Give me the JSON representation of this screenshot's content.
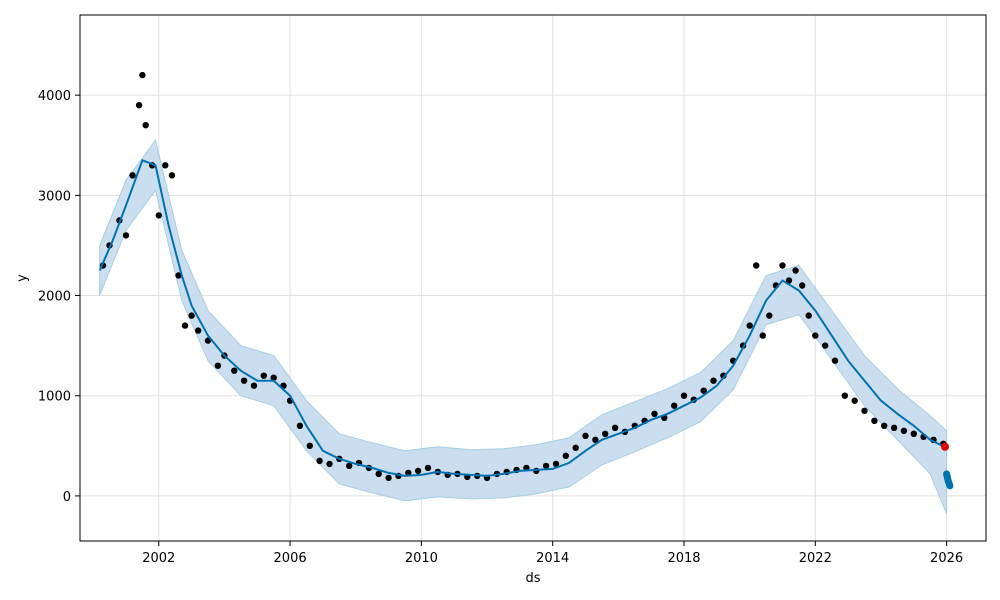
{
  "chart_data": {
    "type": "scatter",
    "title": "",
    "xlabel": "ds",
    "ylabel": "y",
    "xlim": [
      1999.6,
      2027.2
    ],
    "ylim": [
      -450,
      4800
    ],
    "x_ticks": [
      2002,
      2006,
      2010,
      2014,
      2018,
      2022,
      2026
    ],
    "x_tick_labels": [
      "2002",
      "2006",
      "2010",
      "2014",
      "2018",
      "2022",
      "2026"
    ],
    "y_ticks": [
      0,
      1000,
      2000,
      3000,
      4000
    ],
    "y_tick_labels": [
      "0",
      "1000",
      "2000",
      "3000",
      "4000"
    ],
    "grid": true,
    "colors": {
      "observed": "#000000",
      "forecast": "#0072b2",
      "interval": "#c6dbef",
      "interval_edge": "#9ecae1",
      "last_point": "#e00000"
    },
    "series": [
      {
        "kind": "observed_points",
        "x": [
          2000.3,
          2000.5,
          2000.8,
          2001.0,
          2001.2,
          2001.4,
          2001.5,
          2001.6,
          2001.8,
          2002.0,
          2002.2,
          2002.4,
          2002.6,
          2002.8,
          2003.0,
          2003.2,
          2003.5,
          2003.8,
          2004.0,
          2004.3,
          2004.6,
          2004.9,
          2005.2,
          2005.5,
          2005.8,
          2006.0,
          2006.3,
          2006.6,
          2006.9,
          2007.2,
          2007.5,
          2007.8,
          2008.1,
          2008.4,
          2008.7,
          2009.0,
          2009.3,
          2009.6,
          2009.9,
          2010.2,
          2010.5,
          2010.8,
          2011.1,
          2011.4,
          2011.7,
          2012.0,
          2012.3,
          2012.6,
          2012.9,
          2013.2,
          2013.5,
          2013.8,
          2014.1,
          2014.4,
          2014.7,
          2015.0,
          2015.3,
          2015.6,
          2015.9,
          2016.2,
          2016.5,
          2016.8,
          2017.1,
          2017.4,
          2017.7,
          2018.0,
          2018.3,
          2018.6,
          2018.9,
          2019.2,
          2019.5,
          2019.8,
          2020.0,
          2020.2,
          2020.4,
          2020.6,
          2020.8,
          2021.0,
          2021.2,
          2021.4,
          2021.6,
          2021.8,
          2022.0,
          2022.3,
          2022.6,
          2022.9,
          2023.2,
          2023.5,
          2023.8,
          2024.1,
          2024.4,
          2024.7,
          2025.0,
          2025.3,
          2025.6,
          2025.9
        ],
        "y": [
          2300,
          2500,
          2750,
          2600,
          3200,
          3900,
          4200,
          3700,
          3300,
          2800,
          3300,
          3200,
          2200,
          1700,
          1800,
          1650,
          1550,
          1300,
          1400,
          1250,
          1150,
          1100,
          1200,
          1180,
          1100,
          950,
          700,
          500,
          350,
          320,
          370,
          300,
          330,
          280,
          220,
          180,
          200,
          230,
          250,
          280,
          240,
          210,
          220,
          190,
          200,
          180,
          220,
          240,
          260,
          280,
          250,
          300,
          320,
          400,
          480,
          600,
          560,
          620,
          680,
          640,
          700,
          750,
          820,
          780,
          900,
          1000,
          960,
          1050,
          1150,
          1200,
          1350,
          1500,
          1700,
          2300,
          1600,
          1800,
          2100,
          2300,
          2150,
          2250,
          2100,
          1800,
          1600,
          1500,
          1350,
          1000,
          950,
          850,
          750,
          700,
          680,
          650,
          620,
          590,
          560,
          520
        ]
      },
      {
        "kind": "forecast",
        "name": "",
        "x": [
          2000.2,
          2000.6,
          2001.0,
          2001.5,
          2001.9,
          2002.3,
          2002.7,
          2003.0,
          2003.5,
          2004.0,
          2004.5,
          2005.0,
          2005.5,
          2006.0,
          2006.5,
          2007.0,
          2007.5,
          2008.0,
          2008.5,
          2009.0,
          2009.5,
          2010.0,
          2010.5,
          2011.0,
          2011.5,
          2012.0,
          2012.5,
          2013.0,
          2013.5,
          2014.0,
          2014.5,
          2015.0,
          2015.5,
          2016.0,
          2016.5,
          2017.0,
          2017.5,
          2018.0,
          2018.5,
          2019.0,
          2019.5,
          2020.0,
          2020.5,
          2021.0,
          2021.5,
          2022.0,
          2022.5,
          2023.0,
          2023.5,
          2024.0,
          2024.5,
          2025.0,
          2025.5,
          2026.0
        ],
        "y": [
          2250,
          2550,
          2900,
          3350,
          3300,
          2700,
          2200,
          1900,
          1600,
          1400,
          1250,
          1150,
          1150,
          1000,
          700,
          450,
          370,
          320,
          280,
          230,
          200,
          210,
          240,
          220,
          210,
          200,
          220,
          250,
          260,
          270,
          330,
          450,
          560,
          620,
          680,
          760,
          820,
          900,
          980,
          1100,
          1300,
          1600,
          1950,
          2150,
          2050,
          1850,
          1600,
          1350,
          1150,
          950,
          820,
          700,
          560,
          480
        ]
      },
      {
        "kind": "uncertainty_interval",
        "x": [
          2000.2,
          2001.0,
          2001.9,
          2002.7,
          2003.5,
          2004.5,
          2005.5,
          2006.5,
          2007.5,
          2008.5,
          2009.5,
          2010.5,
          2011.5,
          2012.5,
          2013.5,
          2014.5,
          2015.5,
          2016.5,
          2017.5,
          2018.5,
          2019.5,
          2020.5,
          2021.5,
          2022.5,
          2023.5,
          2024.5,
          2025.5,
          2026.0
        ],
        "y_lower": [
          2000,
          2650,
          3050,
          1950,
          1350,
          1000,
          900,
          450,
          120,
          30,
          -50,
          -10,
          -30,
          -20,
          20,
          90,
          310,
          440,
          580,
          740,
          1060,
          1710,
          1810,
          1360,
          900,
          560,
          220,
          -180
        ],
        "y_upper": [
          2500,
          3150,
          3550,
          2450,
          1850,
          1500,
          1400,
          950,
          620,
          530,
          450,
          490,
          460,
          470,
          510,
          580,
          810,
          940,
          1070,
          1230,
          1550,
          2200,
          2300,
          1850,
          1400,
          1070,
          800,
          650
        ]
      },
      {
        "kind": "forecast_tail",
        "x": [
          2026.0,
          2026.05,
          2026.1
        ],
        "y": [
          220,
          150,
          100
        ]
      },
      {
        "kind": "last_observed",
        "x": [
          2025.95
        ],
        "y": [
          490
        ]
      }
    ]
  }
}
